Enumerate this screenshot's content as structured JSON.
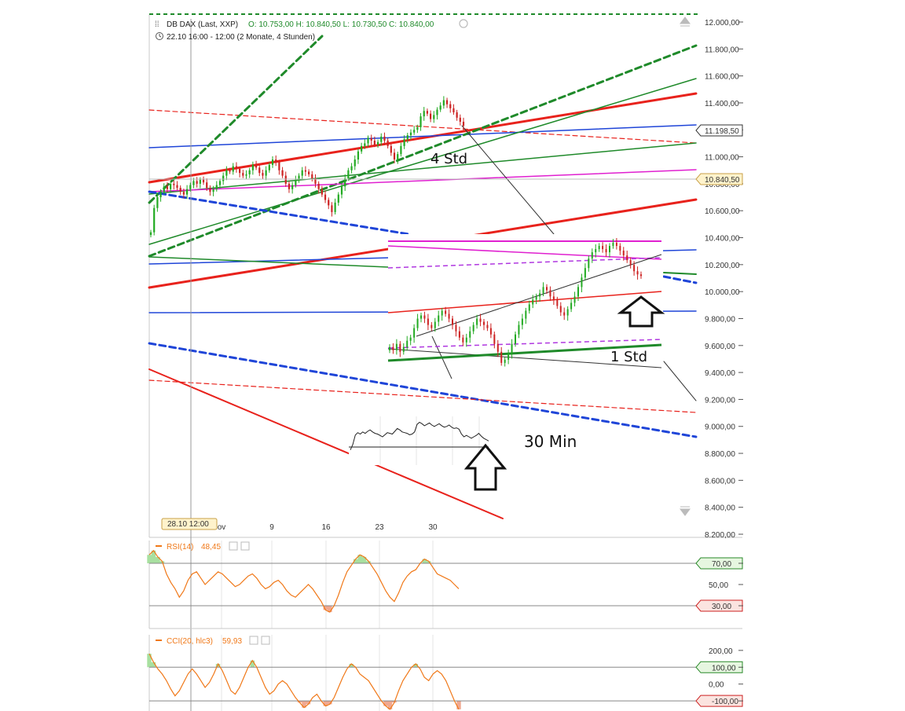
{
  "header": {
    "instrument": "DB DAX (Last, XXP)",
    "ohlc": "O: 10.753,00   H: 10.840,50   L: 10.730,50   C: 10.840,00",
    "period": "22.10 16:00 - 12:00 (2 Monate, 4 Stunden)"
  },
  "colors": {
    "up": "#22aa22",
    "down": "#cc2222",
    "red": "#e8221c",
    "green": "#1f8a2a",
    "blue": "#1f45d8",
    "magenta": "#e020d0",
    "purple": "#b038e0",
    "orange": "#f07818",
    "black": "#222222"
  },
  "chart_data": [
    {
      "type": "candlestick",
      "name": "main-price",
      "yticks": [
        "12.000,00",
        "11.800,00",
        "11.600,00",
        "11.400,00",
        "11.200,00",
        "11.000,00",
        "10.800,00",
        "10.600,00",
        "10.400,00",
        "10.200,00",
        "10.000,00",
        "9.800,00",
        "9.600,00",
        "9.400,00",
        "9.200,00",
        "9.000,00",
        "8.800,00",
        "8.600,00",
        "8.400,00",
        "8.200,00"
      ],
      "ytick_values": [
        12000,
        11800,
        11600,
        11400,
        11200,
        11000,
        10800,
        10600,
        10400,
        10200,
        10000,
        9800,
        9600,
        9400,
        9200,
        9000,
        8800,
        8600,
        8400,
        8200
      ],
      "ylim": [
        8200,
        12000
      ],
      "xticks": [
        "ov",
        "9",
        "16",
        "23",
        "30"
      ],
      "crosshair_date": "28.10 12:00",
      "price_marks": [
        {
          "label": "11.198,50",
          "value": 11198.5
        },
        {
          "label": "10.840,50",
          "value": 10840.5
        }
      ],
      "closes": [
        10440,
        10620,
        10700,
        10740,
        10780,
        10760,
        10800,
        10790,
        10770,
        10740,
        10720,
        10760,
        10790,
        10820,
        10800,
        10830,
        10810,
        10770,
        10740,
        10760,
        10790,
        10820,
        10860,
        10900,
        10890,
        10930,
        10910,
        10880,
        10860,
        10870,
        10900,
        10940,
        10920,
        10880,
        10860,
        10900,
        10940,
        10980,
        10960,
        10900,
        10860,
        10800,
        10760,
        10790,
        10830,
        10860,
        10900,
        10890,
        10870,
        10840,
        10800,
        10760,
        10720,
        10680,
        10640,
        10590,
        10660,
        10720,
        10780,
        10840,
        10900,
        10930,
        10980,
        11040,
        11080,
        11100,
        11140,
        11120,
        11090,
        11110,
        11150,
        11120,
        11080,
        11030,
        10980,
        11020,
        11080,
        11130,
        11160,
        11180,
        11200,
        11220,
        11300,
        11340,
        11320,
        11280,
        11310,
        11350,
        11380,
        11420,
        11390,
        11360,
        11330,
        11290,
        11260,
        11230
      ]
    },
    {
      "type": "candlestick",
      "name": "inset-1-std",
      "closes": [
        9560,
        9540,
        9580,
        9530,
        9560,
        9600,
        9620,
        9680,
        9740,
        9760,
        9740,
        9700,
        9680,
        9720,
        9760,
        9790,
        9770,
        9740,
        9700,
        9660,
        9620,
        9590,
        9620,
        9660,
        9700,
        9740,
        9720,
        9700,
        9680,
        9640,
        9580,
        9530,
        9460,
        9480,
        9520,
        9580,
        9640,
        9700,
        9740,
        9790,
        9830,
        9860,
        9880,
        9900,
        9940,
        9920,
        9880,
        9860,
        9820,
        9780,
        9760,
        9800,
        9840,
        9880,
        9940,
        10000,
        10060,
        10120,
        10160,
        10180,
        10200,
        10180,
        10160,
        10200,
        10220,
        10200,
        10170,
        10140,
        10110,
        10080,
        10040,
        10020,
        10010
      ]
    },
    {
      "type": "line",
      "name": "inset-30-min",
      "values": [
        0.12,
        0.28,
        0.55,
        0.62,
        0.58,
        0.64,
        0.6,
        0.66,
        0.7,
        0.64,
        0.6,
        0.58,
        0.54,
        0.5,
        0.56,
        0.62,
        0.6,
        0.58,
        0.66,
        0.74,
        0.7,
        0.64,
        0.62,
        0.6,
        0.56,
        0.58,
        0.64,
        0.86,
        0.92,
        0.88,
        0.82,
        0.86,
        0.9,
        0.84,
        0.8,
        0.84,
        0.88,
        0.82,
        0.78,
        0.8,
        0.84,
        0.78,
        0.74,
        0.76,
        0.72,
        0.58,
        0.5,
        0.54,
        0.5,
        0.46,
        0.5,
        0.54,
        0.6,
        0.52,
        0.46,
        0.42,
        0.38
      ]
    },
    {
      "type": "line",
      "name": "rsi",
      "label": "RSI(14)",
      "value": "48,45",
      "levels": [
        "70,00",
        "50,00",
        "30,00"
      ],
      "level_values": [
        70,
        50,
        30
      ],
      "ylim": [
        10,
        90
      ],
      "values": [
        78,
        82,
        76,
        72,
        60,
        52,
        46,
        38,
        44,
        54,
        60,
        62,
        56,
        50,
        54,
        58,
        62,
        60,
        56,
        52,
        48,
        50,
        54,
        58,
        60,
        56,
        50,
        46,
        48,
        52,
        54,
        50,
        44,
        40,
        38,
        42,
        46,
        50,
        46,
        40,
        34,
        26,
        24,
        30,
        40,
        52,
        62,
        68,
        74,
        78,
        76,
        72,
        66,
        60,
        52,
        44,
        38,
        34,
        42,
        52,
        58,
        62,
        64,
        70,
        74,
        72,
        66,
        60,
        58,
        56,
        54,
        50,
        46
      ]
    },
    {
      "type": "line",
      "name": "cci",
      "label": "CCI(20, hlc3)",
      "value": "59,93",
      "levels": [
        "200,00",
        "100,00",
        "0,00",
        "-100,00"
      ],
      "level_values": [
        200,
        100,
        0,
        -100
      ],
      "ylim": [
        -160,
        260
      ],
      "values": [
        180,
        130,
        90,
        60,
        20,
        -30,
        -70,
        -40,
        10,
        60,
        90,
        60,
        20,
        -20,
        10,
        60,
        120,
        80,
        20,
        -40,
        -60,
        -20,
        40,
        100,
        140,
        100,
        40,
        -20,
        -60,
        -40,
        0,
        20,
        0,
        -40,
        -80,
        -110,
        -140,
        -120,
        -80,
        -60,
        -100,
        -130,
        -120,
        -80,
        -20,
        40,
        90,
        120,
        100,
        60,
        40,
        20,
        -20,
        -60,
        -100,
        -130,
        -150,
        -110,
        -40,
        20,
        60,
        100,
        120,
        90,
        40,
        20,
        60,
        80,
        60,
        20,
        -40,
        -100,
        -150
      ]
    }
  ],
  "annotations": {
    "label_4std": "4 Std",
    "label_1std": "1 Std",
    "label_30min": "30 Min"
  }
}
